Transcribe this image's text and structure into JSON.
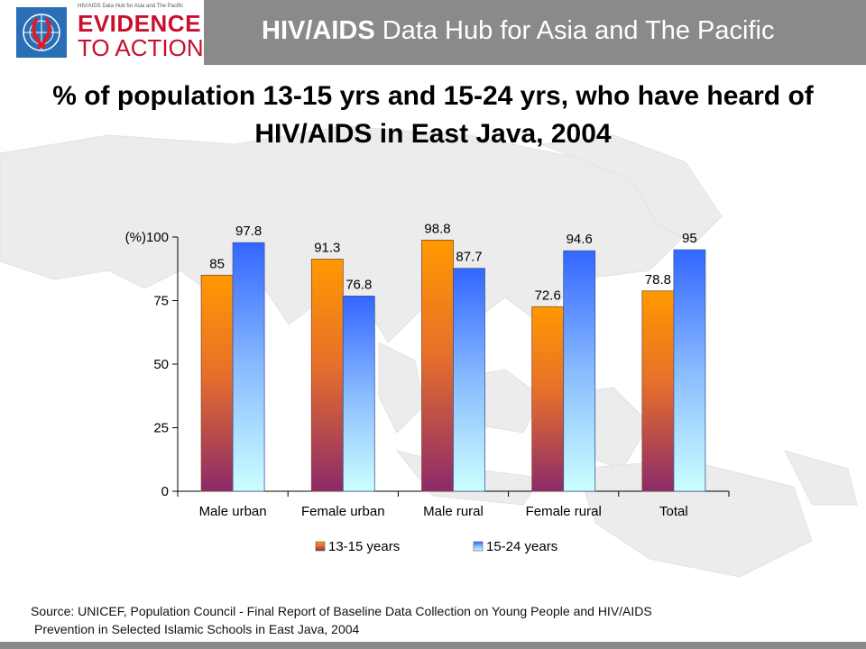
{
  "header": {
    "logo_small_text": "HIV/AIDS Data Hub for Asia and The Pacific",
    "logo_line1": "EVIDENCE",
    "logo_line2": "TO ACTION",
    "hub_title_bold": "HIV/AIDS",
    "hub_title_rest": " Data Hub for Asia and The Pacific"
  },
  "slide": {
    "title": "% of population 13-15 yrs and 15-24 yrs, who have heard of HIV/AIDS in East Java, 2004"
  },
  "source": {
    "line1": "Source: UNICEF, Population Council - Final Report of Baseline Data Collection on Young People and HIV/AIDS",
    "line2": "Prevention in Selected Islamic Schools in East Java, 2004"
  },
  "colors": {
    "header_band": "#8a8a8a",
    "logo_red": "#c8102e",
    "series1_top": "#ff9900",
    "series1_bottom": "#8b2a6a",
    "series2_top": "#3366ff",
    "series2_bottom": "#ccffff"
  },
  "chart_data": {
    "type": "bar",
    "title": "",
    "xlabel": "",
    "ylabel": "(%)",
    "ylim": [
      0,
      100
    ],
    "yticks": [
      0,
      25,
      50,
      75,
      100
    ],
    "grid": false,
    "legend_position": "bottom",
    "categories": [
      "Male urban",
      "Female urban",
      "Male rural",
      "Female rural",
      "Total"
    ],
    "series": [
      {
        "name": "13-15 years",
        "values": [
          85,
          91.3,
          98.8,
          72.6,
          78.8
        ]
      },
      {
        "name": "15-24 years",
        "values": [
          97.8,
          76.8,
          87.7,
          94.6,
          95
        ]
      }
    ]
  }
}
